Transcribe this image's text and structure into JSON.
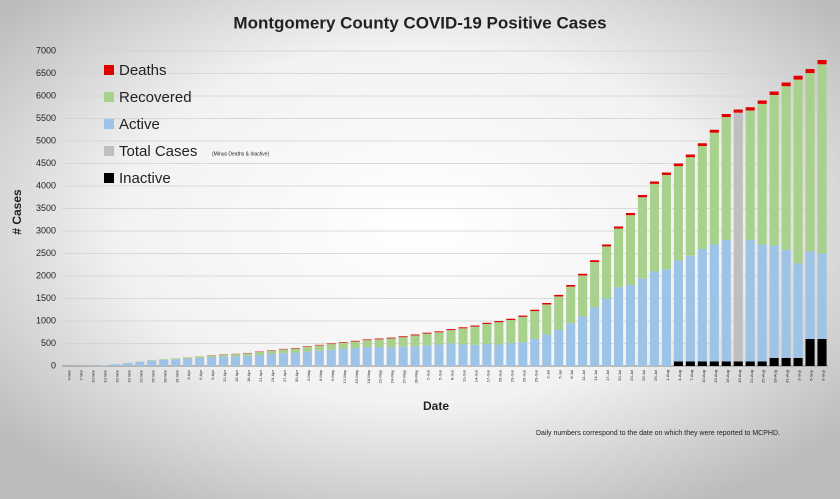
{
  "chart_data": {
    "type": "stacked_bar",
    "title": "Montgomery County COVID-19 Positive Cases",
    "y_label": "# Cases",
    "x_label": "Date",
    "legend_note": "(Minus Deaths & Inactive)",
    "footnote": "Daily numbers correspond to the date on which they were reported to MCPHD.",
    "ylim": [
      0,
      7000
    ],
    "yticks": [
      0,
      500,
      1000,
      1500,
      2000,
      2500,
      3000,
      3500,
      4000,
      4500,
      5000,
      5500,
      6000,
      6500,
      7000
    ],
    "grid": true,
    "categories": [
      "4-Mar",
      "7-Mar",
      "10-Mar",
      "13-Mar",
      "16-Mar",
      "19-Mar",
      "22-Mar",
      "25-Mar",
      "28-Mar",
      "31-Mar",
      "3-Apr",
      "6-Apr",
      "9-Apr",
      "12-Apr",
      "15-Apr",
      "18-Apr",
      "21-Apr",
      "24-Apr",
      "27-Apr",
      "30-Apr",
      "3-May",
      "6-May",
      "9-May",
      "12-May",
      "15-May",
      "18-May",
      "21-May",
      "24-May",
      "27-May",
      "30-May",
      "2-Jun",
      "5-Jun",
      "8-Jun",
      "11-Jun",
      "14-Jun",
      "17-Jun",
      "20-Jun",
      "23-Jun",
      "26-Jun",
      "29-Jun",
      "2-Jul",
      "5-Jul",
      "8-Jul",
      "11-Jul",
      "14-Jul",
      "17-Jul",
      "20-Jul",
      "23-Jul",
      "26-Jul",
      "29-Jul",
      "1-Aug",
      "4-Aug",
      "7-Aug",
      "10-Aug",
      "13-Aug",
      "16-Aug",
      "19-Aug",
      "22-Aug",
      "25-Aug",
      "28-Aug",
      "31-Aug",
      "3-Sep",
      "6-Sep",
      "9-Sep"
    ],
    "series": [
      {
        "name": "Deaths",
        "color": "#e00000",
        "values": [
          0,
          0,
          0,
          0,
          0,
          0,
          0,
          0,
          0,
          0,
          2,
          3,
          4,
          5,
          6,
          7,
          8,
          9,
          10,
          10,
          11,
          12,
          13,
          14,
          15,
          16,
          17,
          18,
          19,
          20,
          20,
          21,
          22,
          23,
          24,
          25,
          26,
          27,
          28,
          30,
          32,
          34,
          36,
          38,
          40,
          42,
          45,
          48,
          50,
          52,
          55,
          58,
          60,
          62,
          65,
          68,
          70,
          72,
          75,
          78,
          82,
          85,
          90,
          95
        ]
      },
      {
        "name": "Recovered",
        "color": "#a9d18e",
        "values": [
          0,
          0,
          0,
          0,
          0,
          5,
          5,
          10,
          15,
          20,
          23,
          27,
          36,
          45,
          49,
          58,
          67,
          76,
          85,
          90,
          109,
          118,
          127,
          136,
          145,
          154,
          173,
          192,
          211,
          240,
          260,
          269,
          298,
          357,
          406,
          445,
          494,
          513,
          562,
          620,
          668,
          746,
          814,
          912,
          1010,
          1158,
          1305,
          1552,
          1800,
          1948,
          2095,
          2092,
          2190,
          2288,
          2485,
          2732,
          0,
          2878,
          3125,
          3342,
          3638,
          4085,
          3960,
          4205
        ]
      },
      {
        "name": "Active",
        "color": "#9dc3e6",
        "values": [
          0,
          2,
          5,
          15,
          40,
          65,
          95,
          120,
          135,
          150,
          165,
          180,
          200,
          210,
          215,
          225,
          245,
          265,
          285,
          300,
          320,
          340,
          360,
          380,
          400,
          420,
          420,
          420,
          430,
          440,
          460,
          480,
          500,
          480,
          470,
          490,
          480,
          510,
          530,
          600,
          700,
          800,
          950,
          1100,
          1300,
          1500,
          1750,
          1800,
          1950,
          2100,
          2150,
          2250,
          2350,
          2500,
          2600,
          2700,
          0,
          2700,
          2600,
          2500,
          2400,
          2100,
          1950,
          1900
        ]
      },
      {
        "name": "Total Cases",
        "color": "#bfbfbf",
        "values": [
          0,
          0,
          0,
          0,
          0,
          0,
          0,
          0,
          0,
          0,
          0,
          0,
          0,
          0,
          0,
          0,
          0,
          0,
          0,
          0,
          0,
          0,
          0,
          0,
          0,
          0,
          0,
          0,
          0,
          0,
          0,
          0,
          0,
          0,
          0,
          0,
          0,
          0,
          0,
          0,
          0,
          0,
          0,
          0,
          0,
          0,
          0,
          0,
          0,
          0,
          0,
          0,
          0,
          0,
          0,
          0,
          5530,
          0,
          0,
          0,
          0,
          0,
          0,
          0
        ]
      },
      {
        "name": "Inactive",
        "color": "#000000",
        "values": [
          0,
          0,
          0,
          0,
          0,
          0,
          0,
          0,
          0,
          0,
          0,
          0,
          0,
          0,
          0,
          0,
          0,
          0,
          0,
          0,
          0,
          0,
          0,
          0,
          0,
          0,
          0,
          0,
          0,
          0,
          0,
          0,
          0,
          0,
          0,
          0,
          0,
          0,
          0,
          0,
          0,
          0,
          0,
          0,
          0,
          0,
          0,
          0,
          0,
          0,
          0,
          100,
          100,
          100,
          100,
          100,
          100,
          100,
          100,
          180,
          180,
          180,
          600,
          600
        ]
      }
    ]
  }
}
